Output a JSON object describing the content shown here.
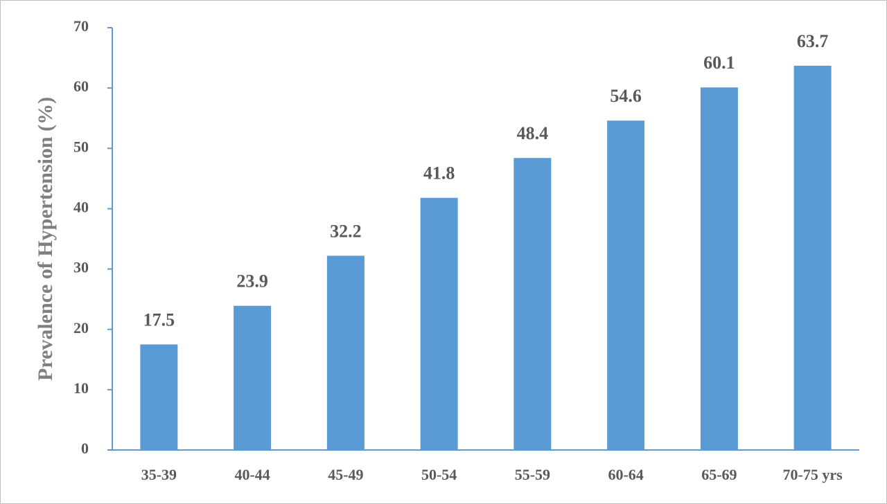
{
  "chart_data": {
    "type": "bar",
    "y_label": "Prevalence of Hypertension (%)",
    "categories": [
      "35-39",
      "40-44",
      "45-49",
      "50-54",
      "55-59",
      "60-64",
      "65-69",
      "70-75 yrs"
    ],
    "values": [
      17.5,
      23.9,
      32.2,
      41.8,
      48.4,
      54.6,
      60.1,
      63.7
    ],
    "color": "#5b9bd5",
    "axis_color": "#5b9bd5",
    "ylim": [
      0,
      70
    ],
    "yticks": [
      0,
      10,
      20,
      30,
      40,
      50,
      60,
      70
    ],
    "grid": false
  }
}
